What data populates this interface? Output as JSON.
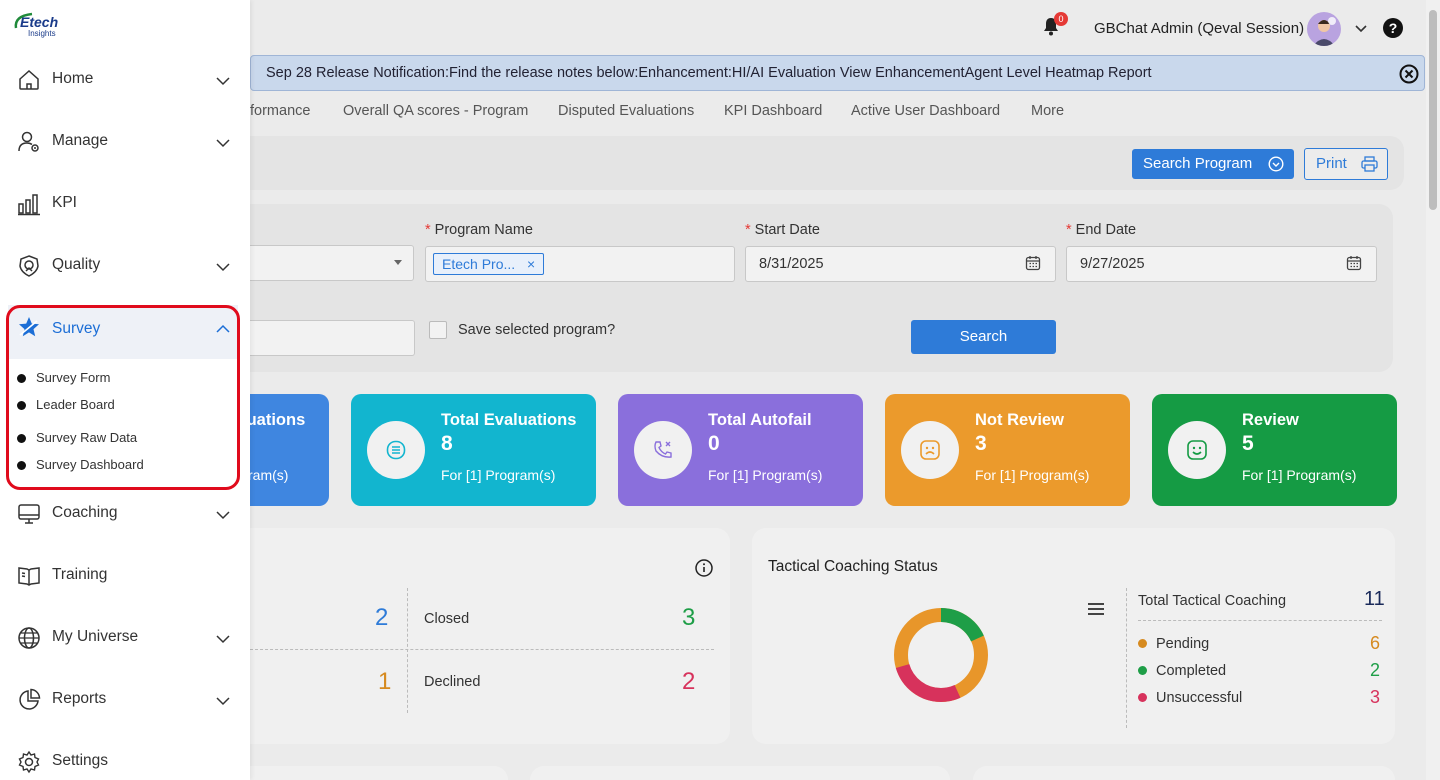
{
  "header": {
    "notification_count": "0",
    "username": "GBChat Admin (Qeval Session)"
  },
  "release_banner": {
    "text": "Sep 28 Release Notification:Find the release notes below:Enhancement:HI/AI Evaluation View EnhancementAgent Level Heatmap Report"
  },
  "tabs": [
    {
      "label": "formance"
    },
    {
      "label": "Overall QA scores - Program"
    },
    {
      "label": "Disputed Evaluations"
    },
    {
      "label": "KPI Dashboard"
    },
    {
      "label": "Active User Dashboard"
    },
    {
      "label": "More"
    }
  ],
  "toolbar": {
    "search_program_label": "Search Program",
    "print_label": "Print"
  },
  "filters": {
    "program_name_label": "Program Name",
    "program_tag": "Etech Pro...",
    "tag_remove": "×",
    "start_date_label": "Start Date",
    "start_date_value": "8/31/2025",
    "end_date_label": "End Date",
    "end_date_value": "9/27/2025",
    "required_mark": "*",
    "save_program_label": "Save selected program?",
    "search_label": "Search"
  },
  "stats": [
    {
      "title": "luations",
      "value": "",
      "sub": "ram(s)",
      "color": "#3f86e0"
    },
    {
      "title": "Total Evaluations",
      "value": "8",
      "sub": "For [1] Program(s)",
      "color": "#12b5cf"
    },
    {
      "title": "Total Autofail",
      "value": "0",
      "sub": "For [1] Program(s)",
      "color": "#8a6fdc"
    },
    {
      "title": "Not Review",
      "value": "3",
      "sub": "For [1] Program(s)",
      "color": "#eb9a2c"
    },
    {
      "title": "Review",
      "value": "5",
      "sub": "For [1] Program(s)",
      "color": "#159b44"
    }
  ],
  "status_card": {
    "left_top_value": "2",
    "closed_label": "Closed",
    "closed_value": "3",
    "left_bottom_value": "1",
    "declined_label": "Declined",
    "declined_value": "2"
  },
  "tactical": {
    "title": "Tactical Coaching Status",
    "total_label": "Total Tactical Coaching",
    "total_value": "11",
    "items": [
      {
        "label": "Pending",
        "value": "6",
        "color": "#d68a1f"
      },
      {
        "label": "Completed",
        "value": "2",
        "color": "#1e9e47"
      },
      {
        "label": "Unsuccessful",
        "value": "3",
        "color": "#d7325c"
      }
    ]
  },
  "sidebar": {
    "logo_text": "Etech",
    "logo_sub": "Insights",
    "items": [
      {
        "label": "Home",
        "icon": "home-icon"
      },
      {
        "label": "Manage",
        "icon": "user-gear-icon"
      },
      {
        "label": "KPI",
        "icon": "bar-chart-icon"
      },
      {
        "label": "Quality",
        "icon": "quality-badge-icon"
      },
      {
        "label": "Survey",
        "icon": "star-icon"
      },
      {
        "label": "Coaching",
        "icon": "monitor-icon"
      },
      {
        "label": "Training",
        "icon": "book-icon"
      },
      {
        "label": "My Universe",
        "icon": "globe-icon"
      },
      {
        "label": "Reports",
        "icon": "pie-chart-icon"
      },
      {
        "label": "Settings",
        "icon": "gear-icon"
      }
    ],
    "survey_subitems": [
      {
        "label": "Survey Form"
      },
      {
        "label": "Leader Board"
      },
      {
        "label": "Survey Raw Data"
      },
      {
        "label": "Survey Dashboard"
      }
    ]
  }
}
